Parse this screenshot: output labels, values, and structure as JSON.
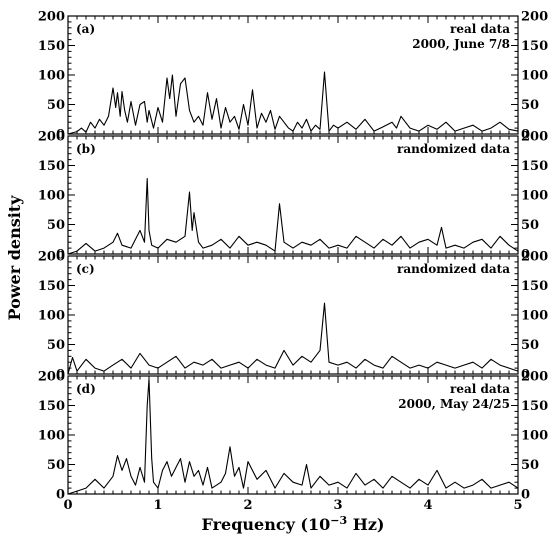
{
  "figure": {
    "ylabel": "Power density",
    "xlabel": {
      "prefix": "Frequency (10",
      "exp": "−3",
      "suffix": " Hz)"
    }
  },
  "chart_data": [
    {
      "type": "line",
      "panel": "(a)",
      "annotation": [
        "real data",
        "2000, June 7/8"
      ],
      "xlim": [
        0,
        5
      ],
      "ylim": [
        0,
        200
      ],
      "xticks": [
        "0",
        "1",
        "2",
        "3",
        "4",
        "5"
      ],
      "yticks": [
        "0",
        "50",
        "100",
        "150",
        "200"
      ],
      "x": [
        0,
        0.1,
        0.15,
        0.2,
        0.25,
        0.3,
        0.35,
        0.4,
        0.45,
        0.5,
        0.53,
        0.55,
        0.58,
        0.6,
        0.63,
        0.66,
        0.7,
        0.75,
        0.8,
        0.85,
        0.88,
        0.9,
        0.95,
        1.0,
        1.05,
        1.1,
        1.13,
        1.16,
        1.2,
        1.25,
        1.3,
        1.35,
        1.4,
        1.45,
        1.5,
        1.55,
        1.6,
        1.65,
        1.7,
        1.75,
        1.8,
        1.85,
        1.9,
        1.95,
        2.0,
        2.05,
        2.1,
        2.15,
        2.2,
        2.25,
        2.3,
        2.35,
        2.4,
        2.45,
        2.5,
        2.55,
        2.6,
        2.65,
        2.7,
        2.75,
        2.8,
        2.85,
        2.9,
        2.95,
        3.0,
        3.1,
        3.2,
        3.3,
        3.4,
        3.5,
        3.6,
        3.65,
        3.7,
        3.8,
        3.9,
        4.0,
        4.1,
        4.2,
        4.3,
        4.4,
        4.5,
        4.6,
        4.7,
        4.8,
        4.9,
        5.0
      ],
      "y": [
        0,
        4,
        10,
        3,
        20,
        10,
        25,
        15,
        30,
        78,
        45,
        70,
        30,
        72,
        40,
        20,
        55,
        15,
        50,
        55,
        20,
        40,
        10,
        45,
        20,
        95,
        60,
        100,
        30,
        85,
        95,
        40,
        20,
        30,
        15,
        70,
        25,
        60,
        10,
        45,
        20,
        30,
        8,
        50,
        15,
        75,
        10,
        35,
        20,
        40,
        8,
        30,
        20,
        10,
        5,
        20,
        10,
        25,
        5,
        15,
        8,
        105,
        5,
        15,
        10,
        20,
        8,
        25,
        5,
        12,
        20,
        10,
        30,
        10,
        5,
        15,
        8,
        20,
        5,
        10,
        15,
        5,
        10,
        20,
        8,
        5
      ]
    },
    {
      "type": "line",
      "panel": "(b)",
      "annotation": [
        "randomized data"
      ],
      "xlim": [
        0,
        5
      ],
      "ylim": [
        0,
        200
      ],
      "xticks": [
        "0",
        "1",
        "2",
        "3",
        "4",
        "5"
      ],
      "yticks": [
        "0",
        "50",
        "100",
        "150",
        "200"
      ],
      "x": [
        0,
        0.1,
        0.2,
        0.3,
        0.4,
        0.5,
        0.55,
        0.6,
        0.7,
        0.8,
        0.85,
        0.88,
        0.9,
        0.93,
        1.0,
        1.1,
        1.2,
        1.3,
        1.35,
        1.38,
        1.4,
        1.45,
        1.5,
        1.6,
        1.7,
        1.8,
        1.9,
        2.0,
        2.1,
        2.2,
        2.3,
        2.35,
        2.4,
        2.5,
        2.6,
        2.7,
        2.8,
        2.9,
        3.0,
        3.1,
        3.2,
        3.3,
        3.4,
        3.5,
        3.6,
        3.7,
        3.8,
        3.9,
        4.0,
        4.1,
        4.15,
        4.2,
        4.3,
        4.4,
        4.5,
        4.6,
        4.7,
        4.8,
        4.9,
        5.0
      ],
      "y": [
        0,
        5,
        18,
        5,
        10,
        20,
        35,
        15,
        10,
        40,
        20,
        128,
        40,
        15,
        10,
        25,
        20,
        30,
        105,
        40,
        70,
        20,
        10,
        15,
        25,
        10,
        30,
        15,
        20,
        15,
        5,
        85,
        20,
        10,
        20,
        15,
        25,
        10,
        15,
        10,
        30,
        20,
        10,
        25,
        15,
        30,
        10,
        20,
        25,
        15,
        45,
        10,
        15,
        10,
        20,
        25,
        10,
        30,
        15,
        5
      ]
    },
    {
      "type": "line",
      "panel": "(c)",
      "annotation": [
        "randomized data"
      ],
      "xlim": [
        0,
        5
      ],
      "ylim": [
        0,
        200
      ],
      "xticks": [
        "0",
        "1",
        "2",
        "3",
        "4",
        "5"
      ],
      "yticks": [
        "0",
        "50",
        "100",
        "150",
        "200"
      ],
      "x": [
        0,
        0.05,
        0.1,
        0.2,
        0.3,
        0.4,
        0.5,
        0.6,
        0.7,
        0.8,
        0.9,
        1.0,
        1.1,
        1.2,
        1.3,
        1.4,
        1.5,
        1.6,
        1.7,
        1.8,
        1.9,
        2.0,
        2.1,
        2.2,
        2.3,
        2.4,
        2.5,
        2.6,
        2.7,
        2.8,
        2.85,
        2.9,
        3.0,
        3.1,
        3.2,
        3.3,
        3.4,
        3.5,
        3.6,
        3.7,
        3.8,
        3.9,
        4.0,
        4.1,
        4.2,
        4.3,
        4.4,
        4.5,
        4.6,
        4.7,
        4.8,
        4.9,
        5.0
      ],
      "y": [
        0,
        28,
        5,
        25,
        10,
        5,
        15,
        25,
        10,
        35,
        15,
        10,
        20,
        30,
        10,
        20,
        15,
        25,
        10,
        15,
        20,
        10,
        25,
        15,
        10,
        40,
        15,
        30,
        20,
        40,
        120,
        20,
        15,
        20,
        10,
        25,
        15,
        10,
        30,
        20,
        10,
        15,
        10,
        20,
        15,
        10,
        15,
        20,
        10,
        25,
        15,
        10,
        5
      ]
    },
    {
      "type": "line",
      "panel": "(d)",
      "annotation": [
        "real data",
        "2000, May 24/25"
      ],
      "xlim": [
        0,
        5
      ],
      "ylim": [
        0,
        200
      ],
      "xticks": [
        "0",
        "1",
        "2",
        "3",
        "4",
        "5"
      ],
      "yticks": [
        "0",
        "50",
        "100",
        "150",
        "200"
      ],
      "x": [
        0,
        0.1,
        0.2,
        0.3,
        0.4,
        0.5,
        0.55,
        0.6,
        0.65,
        0.7,
        0.75,
        0.8,
        0.85,
        0.88,
        0.9,
        0.93,
        0.95,
        1.0,
        1.05,
        1.1,
        1.15,
        1.2,
        1.25,
        1.3,
        1.35,
        1.4,
        1.45,
        1.5,
        1.55,
        1.6,
        1.7,
        1.75,
        1.8,
        1.85,
        1.9,
        1.95,
        2.0,
        2.1,
        2.2,
        2.3,
        2.4,
        2.5,
        2.6,
        2.65,
        2.7,
        2.8,
        2.9,
        3.0,
        3.1,
        3.2,
        3.3,
        3.4,
        3.5,
        3.6,
        3.7,
        3.8,
        3.9,
        4.0,
        4.1,
        4.2,
        4.3,
        4.4,
        4.5,
        4.6,
        4.7,
        4.8,
        4.9,
        5.0
      ],
      "y": [
        0,
        5,
        10,
        25,
        10,
        30,
        65,
        40,
        60,
        30,
        15,
        45,
        20,
        150,
        195,
        60,
        20,
        10,
        40,
        55,
        30,
        45,
        60,
        20,
        55,
        30,
        40,
        15,
        45,
        10,
        20,
        35,
        80,
        30,
        45,
        10,
        55,
        25,
        40,
        10,
        35,
        20,
        15,
        50,
        10,
        30,
        15,
        20,
        10,
        35,
        15,
        25,
        10,
        30,
        20,
        10,
        25,
        15,
        40,
        10,
        20,
        10,
        15,
        25,
        10,
        15,
        20,
        10
      ]
    }
  ]
}
